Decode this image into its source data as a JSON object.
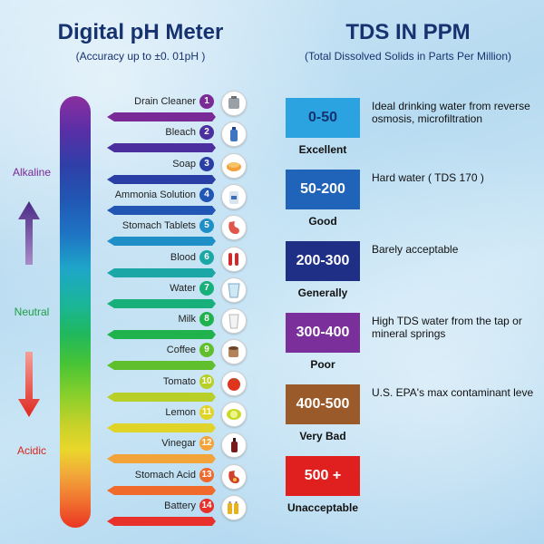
{
  "ph_meter": {
    "title": "Digital pH Meter",
    "subtitle": "(Accuracy up to  ±0. 01pH )",
    "scale_labels": {
      "alkaline": "Alkaline",
      "neutral": "Neutral",
      "acidic": "Acidic"
    },
    "items": [
      {
        "num": "1",
        "label": "Drain Cleaner",
        "color": "#7a2a96",
        "icon": "drain-cleaner-icon"
      },
      {
        "num": "2",
        "label": "Bleach",
        "color": "#4b2f9e",
        "icon": "bleach-bottle-icon"
      },
      {
        "num": "3",
        "label": "Soap",
        "color": "#2a3fa6",
        "icon": "soap-icon"
      },
      {
        "num": "4",
        "label": "Ammonia Solution",
        "color": "#2256b5",
        "icon": "ammonia-bottle-icon"
      },
      {
        "num": "5",
        "label": "Stomach Tablets",
        "color": "#1f8fc8",
        "icon": "stomach-icon"
      },
      {
        "num": "6",
        "label": "Blood",
        "color": "#1aa7a5",
        "icon": "blood-tube-icon"
      },
      {
        "num": "7",
        "label": "Water",
        "color": "#17b07a",
        "icon": "water-glass-icon"
      },
      {
        "num": "8",
        "label": "Milk",
        "color": "#20b24c",
        "icon": "milk-glass-icon"
      },
      {
        "num": "9",
        "label": "Coffee",
        "color": "#5fbf2c",
        "icon": "coffee-cup-icon"
      },
      {
        "num": "10",
        "label": "Tomato",
        "color": "#b7cf27",
        "icon": "tomato-icon"
      },
      {
        "num": "11",
        "label": "Lemon",
        "color": "#e1d429",
        "icon": "lemon-icon"
      },
      {
        "num": "12",
        "label": "Vinegar",
        "color": "#f2a33a",
        "icon": "vinegar-bottle-icon"
      },
      {
        "num": "13",
        "label": "Stomach Acid",
        "color": "#f06a2c",
        "icon": "stomach-acid-icon"
      },
      {
        "num": "14",
        "label": "Battery",
        "color": "#e8312a",
        "icon": "battery-icon"
      }
    ]
  },
  "tds": {
    "title": "TDS IN PPM",
    "subtitle": "(Total Dissolved Solids in Parts Per Million)",
    "levels": [
      {
        "range": "0-50",
        "grade": "Excellent",
        "description": "Ideal drinking water from reverse osmosis, microfiltration",
        "color": "#2aa3e0",
        "text_color": "#16326f"
      },
      {
        "range": "50-200",
        "grade": "Good",
        "description": "Hard water ( TDS 170 )",
        "color": "#1f64b8",
        "text_color": "#ffffff"
      },
      {
        "range": "200-300",
        "grade": "Generally",
        "description": "Barely acceptable",
        "color": "#1f2f86",
        "text_color": "#ffffff"
      },
      {
        "range": "300-400",
        "grade": "Poor",
        "description": "High TDS water from the tap or mineral springs",
        "color": "#7a2f9a",
        "text_color": "#ffffff"
      },
      {
        "range": "400-500",
        "grade": "Very Bad",
        "description": "U.S. EPA's max contaminant leve",
        "color": "#9a5a2a",
        "text_color": "#ffffff"
      },
      {
        "range": "500 +",
        "grade": "Unacceptable",
        "description": "",
        "color": "#e0201f",
        "text_color": "#ffffff"
      }
    ]
  }
}
